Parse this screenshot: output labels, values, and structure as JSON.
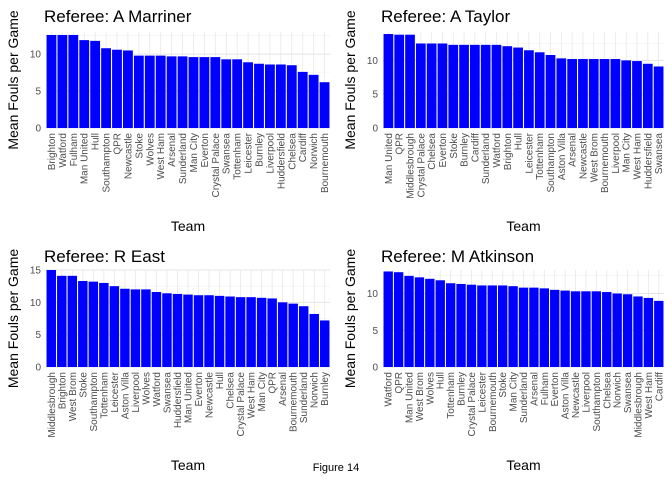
{
  "figure": {
    "caption": "Figure 14"
  },
  "chart_data": [
    {
      "type": "bar",
      "title": "Referee: A Marriner",
      "xlabel": "Team",
      "ylabel": "Mean Fouls per Game",
      "ylim": [
        0,
        13
      ],
      "yticks": [
        0,
        5,
        10
      ],
      "bar_color": "#0000ff",
      "grid": true,
      "categories": [
        "Brighton",
        "Watford",
        "Fulham",
        "Man United",
        "Hull",
        "Southampton",
        "QPR",
        "Newcastle",
        "Stoke",
        "Wolves",
        "West Ham",
        "Arsenal",
        "Sunderland",
        "Man City",
        "Everton",
        "Crystal Palace",
        "Swansea",
        "Tottenham",
        "Leicester",
        "Burnley",
        "Liverpool",
        "Huddersfield",
        "Chelsea",
        "Cardiff",
        "Norwich",
        "Bournemouth"
      ],
      "values": [
        12.6,
        12.6,
        12.6,
        11.9,
        11.8,
        10.8,
        10.6,
        10.5,
        9.8,
        9.8,
        9.8,
        9.7,
        9.7,
        9.6,
        9.6,
        9.6,
        9.3,
        9.3,
        8.9,
        8.7,
        8.6,
        8.6,
        8.5,
        7.6,
        7.2,
        6.2
      ]
    },
    {
      "type": "bar",
      "title": "Referee: A Taylor",
      "xlabel": "Team",
      "ylabel": "Mean Fouls per Game",
      "ylim": [
        0,
        14.2
      ],
      "yticks": [
        0,
        5,
        10
      ],
      "bar_color": "#0000ff",
      "grid": true,
      "categories": [
        "Man United",
        "QPR",
        "Middlesbrough",
        "Crystal Palace",
        "Chelsea",
        "Everton",
        "Stoke",
        "Burnley",
        "Cardiff",
        "Sunderland",
        "Watford",
        "Brighton",
        "Hull",
        "Leicester",
        "Tottenham",
        "Southampton",
        "Aston Villa",
        "Arsenal",
        "Newcastle",
        "West Brom",
        "Bournemouth",
        "Liverpool",
        "Man City",
        "West Ham",
        "Huddersfield",
        "Swansea"
      ],
      "values": [
        13.9,
        13.8,
        13.8,
        12.5,
        12.5,
        12.5,
        12.3,
        12.3,
        12.3,
        12.3,
        12.3,
        12.1,
        11.9,
        11.5,
        11.2,
        10.8,
        10.3,
        10.2,
        10.2,
        10.2,
        10.2,
        10.2,
        10.0,
        9.9,
        9.5,
        9.1
      ]
    },
    {
      "type": "bar",
      "title": "Referee: R East",
      "xlabel": "Team",
      "ylabel": "Mean Fouls per Game",
      "ylim": [
        0,
        15
      ],
      "yticks": [
        0,
        5,
        10,
        15
      ],
      "bar_color": "#0000ff",
      "grid": true,
      "categories": [
        "Middlesbrough",
        "Brighton",
        "West Brom",
        "Stoke",
        "Southampton",
        "Tottenham",
        "Leicester",
        "Aston Villa",
        "Liverpool",
        "Wolves",
        "Watford",
        "Swansea",
        "Huddersfield",
        "Man United",
        "Everton",
        "Newcastle",
        "Hull",
        "Chelsea",
        "Crystal Palace",
        "West Ham",
        "Man City",
        "QPR",
        "Arsenal",
        "Bournemouth",
        "Sunderland",
        "Norwich",
        "Burnley"
      ],
      "values": [
        15.0,
        14.1,
        14.1,
        13.3,
        13.2,
        13.0,
        12.5,
        12.1,
        12.0,
        12.0,
        11.6,
        11.4,
        11.3,
        11.2,
        11.1,
        11.1,
        11.0,
        10.9,
        10.8,
        10.8,
        10.7,
        10.6,
        10.0,
        9.8,
        9.4,
        8.2,
        7.2
      ]
    },
    {
      "type": "bar",
      "title": "Referee: M Atkinson",
      "xlabel": "Team",
      "ylabel": "Mean Fouls per Game",
      "ylim": [
        0,
        13.2
      ],
      "yticks": [
        0,
        5,
        10
      ],
      "bar_color": "#0000ff",
      "grid": true,
      "categories": [
        "Watford",
        "QPR",
        "Man United",
        "West Brom",
        "Wolves",
        "Hull",
        "Tottenham",
        "Burnley",
        "Crystal Palace",
        "Leicester",
        "Bournemouth",
        "Stoke",
        "Man City",
        "Sunderland",
        "Arsenal",
        "Fulham",
        "Everton",
        "Aston Villa",
        "Newcastle",
        "Liverpool",
        "Southampton",
        "Chelsea",
        "Norwich",
        "Swansea",
        "Middlesbrough",
        "West Ham",
        "Cardiff"
      ],
      "values": [
        13.0,
        12.9,
        12.4,
        12.2,
        12.0,
        11.8,
        11.4,
        11.3,
        11.2,
        11.1,
        11.1,
        11.1,
        11.0,
        10.8,
        10.8,
        10.7,
        10.5,
        10.4,
        10.3,
        10.3,
        10.3,
        10.2,
        10.0,
        9.9,
        9.6,
        9.4,
        9.0
      ]
    }
  ]
}
